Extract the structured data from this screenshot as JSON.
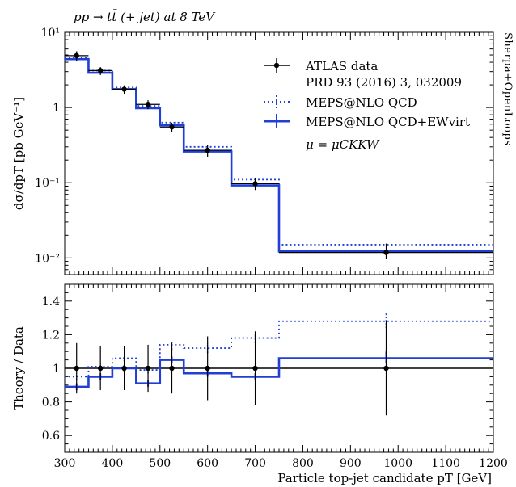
{
  "header": {
    "process": "pp → tt̄ (+ jet) at 8 TeV",
    "generator": "Sherpa+OpenLoops"
  },
  "colors": {
    "data": "#000000",
    "qcd": "#1f3fd6",
    "ew": "#1f3fd6"
  },
  "chart_data": [
    {
      "type": "line",
      "panel": "main",
      "ylabel": "dσ/dpT [pb GeV⁻¹]",
      "yscale": "log",
      "ylim": [
        0.006,
        10
      ],
      "xlim": [
        300,
        1200
      ],
      "yticks": [
        {
          "v": 10,
          "label": "10¹"
        },
        {
          "v": 1,
          "label": "1"
        },
        {
          "v": 0.1,
          "label": "10⁻¹"
        },
        {
          "v": 0.01,
          "label": "10⁻²"
        }
      ],
      "bin_edges": [
        300,
        350,
        400,
        450,
        500,
        550,
        650,
        750,
        1200
      ],
      "legend": {
        "position": "top-right",
        "entries": [
          "ATLAS data",
          "PRD 93 (2016) 3, 032009",
          "MEPS@NLO QCD",
          "MEPS@NLO QCD+EWvirt",
          "μ = μCKKW"
        ]
      },
      "series": [
        {
          "name": "ATLAS data",
          "style": "points",
          "x": [
            325,
            375,
            425,
            475,
            525,
            600,
            700,
            975
          ],
          "values": [
            4.9,
            3.1,
            1.75,
            1.1,
            0.55,
            0.27,
            0.097,
            0.0118
          ],
          "err_low": [
            4.1,
            2.7,
            1.5,
            0.95,
            0.47,
            0.22,
            0.08,
            0.0096
          ],
          "err_high": [
            5.6,
            3.45,
            1.97,
            1.25,
            0.63,
            0.32,
            0.115,
            0.0155
          ]
        },
        {
          "name": "MEPS@NLO QCD",
          "style": "dotted-step",
          "values": [
            4.6,
            3.1,
            1.85,
            1.05,
            0.63,
            0.3,
            0.11,
            0.015
          ]
        },
        {
          "name": "MEPS@NLO QCD+EWvirt",
          "style": "solid-step",
          "values": [
            4.4,
            2.9,
            1.75,
            0.98,
            0.58,
            0.26,
            0.092,
            0.0122
          ]
        }
      ]
    },
    {
      "type": "line",
      "panel": "ratio",
      "ylabel": "Theory / Data",
      "xlabel": "Particle top-jet candidate pT [GeV]",
      "ylim": [
        0.5,
        1.5
      ],
      "xlim": [
        300,
        1200
      ],
      "xticks": [
        "300",
        "400",
        "500",
        "600",
        "700",
        "800",
        "900",
        "1000",
        "1100",
        "1200"
      ],
      "yticks": [
        "0.6",
        "0.8",
        "1",
        "1.2",
        "1.4"
      ],
      "bin_edges": [
        300,
        350,
        400,
        450,
        500,
        550,
        650,
        750,
        1200
      ],
      "series": [
        {
          "name": "ATLAS data",
          "style": "points",
          "x": [
            325,
            375,
            425,
            475,
            525,
            600,
            700,
            975
          ],
          "values": [
            1,
            1,
            1,
            1,
            1,
            1,
            1,
            1
          ],
          "err_low": [
            0.85,
            0.87,
            0.87,
            0.86,
            0.85,
            0.81,
            0.78,
            0.72
          ],
          "err_high": [
            1.15,
            1.13,
            1.13,
            1.14,
            1.15,
            1.19,
            1.22,
            1.28
          ]
        },
        {
          "name": "MEPS@NLO QCD",
          "style": "dotted-step",
          "values": [
            0.95,
            1.01,
            1.06,
            0.99,
            1.14,
            1.12,
            1.18,
            1.28
          ],
          "err_low": [
            0.93,
            0.99,
            1.04,
            0.97,
            1.11,
            1.09,
            1.15,
            1.24
          ],
          "err_high": [
            0.97,
            1.03,
            1.08,
            1.01,
            1.16,
            1.15,
            1.21,
            1.33
          ]
        },
        {
          "name": "MEPS@NLO QCD+EWvirt",
          "style": "solid-step",
          "values": [
            0.89,
            0.95,
            1.0,
            0.91,
            1.05,
            0.97,
            0.95,
            1.06
          ],
          "err_low": [
            0.87,
            0.93,
            0.98,
            0.89,
            1.03,
            0.95,
            0.93,
            1.03
          ],
          "err_high": [
            0.91,
            0.97,
            1.02,
            0.93,
            1.07,
            0.99,
            0.97,
            1.1
          ]
        }
      ]
    }
  ]
}
